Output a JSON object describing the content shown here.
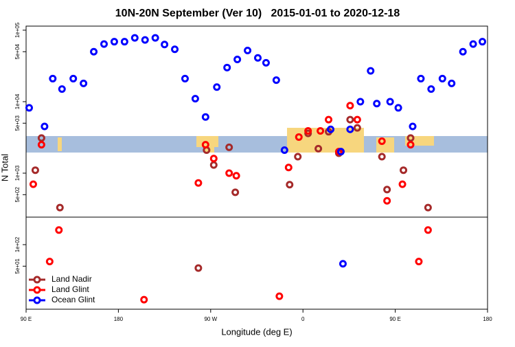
{
  "chart_data": {
    "type": "scatter",
    "title": "10N-20N September (Ver 10)   2015-01-01 to 2020-12-18",
    "x_label": "Longitude (deg E)",
    "y_label": "N Total",
    "log_y": true,
    "legend": "bottomleft",
    "xlim": [
      90,
      540
    ],
    "xticks": [
      {
        "value": 90,
        "label": "90 E"
      },
      {
        "value": 180,
        "label": "180"
      },
      {
        "value": 270,
        "label": "90 W"
      },
      {
        "value": 360,
        "label": "0"
      },
      {
        "value": 450,
        "label": "90 E"
      },
      {
        "value": 540,
        "label": "180"
      }
    ],
    "ylim": [
      12.5,
      114000
    ],
    "yticks": [
      {
        "value": 100000,
        "label": "1e+05"
      },
      {
        "value": 50000,
        "label": "5e+04"
      },
      {
        "value": 10000,
        "label": "1e+04"
      },
      {
        "value": 5000,
        "label": "5e+03"
      },
      {
        "value": 1000,
        "label": "1e+03"
      },
      {
        "value": 500,
        "label": "5e+02"
      },
      {
        "value": 100,
        "label": "1e+02"
      },
      {
        "value": 50,
        "label": "5e+01"
      }
    ],
    "series": [
      {
        "name": "Land Nadir",
        "color": "#a52a2a",
        "x": [
          99,
          105,
          123,
          258,
          266,
          273,
          288,
          294,
          347,
          355,
          365,
          375,
          385,
          395,
          406,
          413,
          437,
          442,
          458,
          465,
          482
        ],
        "values": [
          1100,
          3100,
          330,
          47,
          2100,
          1300,
          2300,
          540,
          690,
          1700,
          3600,
          2200,
          3800,
          1900,
          5600,
          4300,
          1700,
          590,
          1100,
          3100,
          330
        ]
      },
      {
        "name": "Land Glint",
        "color": "#ff0000",
        "x": [
          97,
          105,
          113,
          122,
          205,
          258,
          265,
          273,
          288,
          295,
          337,
          346,
          356,
          365,
          377,
          385,
          395,
          406,
          413,
          437,
          442,
          457,
          465,
          473,
          482
        ],
        "values": [
          700,
          2500,
          58,
          160,
          17,
          730,
          2500,
          1600,
          1000,
          920,
          19,
          1200,
          3200,
          3900,
          3900,
          5600,
          2000,
          8800,
          5600,
          2800,
          410,
          700,
          2500,
          58,
          160
        ]
      },
      {
        "name": "Ocean Glint",
        "color": "#0000ff",
        "x": [
          93,
          108,
          116,
          125,
          136,
          146,
          156,
          166,
          176,
          186,
          196,
          206,
          216,
          225,
          235,
          245,
          255,
          265,
          276,
          286,
          296,
          306,
          316,
          324,
          334,
          342,
          387,
          397,
          399,
          406,
          416,
          426,
          432,
          445,
          453,
          467,
          475,
          485,
          496,
          505,
          516,
          526,
          535
        ],
        "values": [
          8200,
          4500,
          21000,
          15000,
          21000,
          18000,
          50000,
          64000,
          69000,
          69000,
          78000,
          73000,
          78000,
          63000,
          54000,
          21000,
          11000,
          6100,
          16000,
          30000,
          39000,
          52000,
          41000,
          35000,
          20000,
          2100,
          4100,
          2000,
          54,
          4100,
          10000,
          27000,
          9400,
          10000,
          8200,
          4500,
          21000,
          15000,
          21000,
          18000,
          50000,
          64000,
          69000
        ]
      }
    ]
  }
}
